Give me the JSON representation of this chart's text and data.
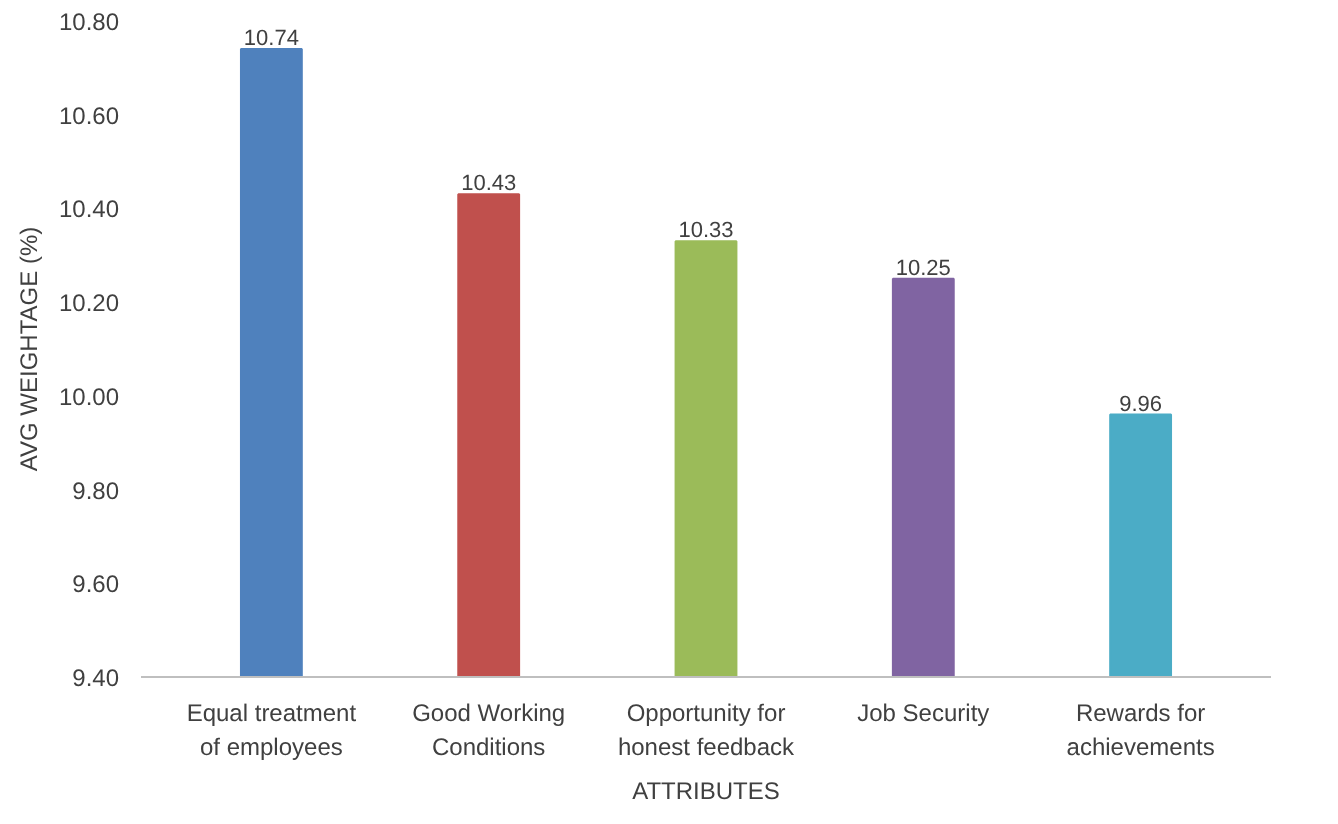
{
  "chart_data": {
    "type": "bar",
    "xlabel": "ATTRIBUTES",
    "ylabel": "AVG WEIGHTAGE (%)",
    "categories": [
      "Equal treatment\nof employees",
      "Good Working\nConditions",
      "Opportunity for\nhonest feedback",
      "Job Security",
      "Rewards for\nachievements"
    ],
    "values": [
      10.74,
      10.43,
      10.33,
      10.25,
      9.96
    ],
    "colors": [
      "#4f81bd",
      "#c0504d",
      "#9bbb59",
      "#8064a2",
      "#4bacc6"
    ],
    "ylim": [
      9.4,
      10.8
    ],
    "yticks": [
      {
        "value": 9.4,
        "label": "9.40"
      },
      {
        "value": 9.6,
        "label": "9.60"
      },
      {
        "value": 9.8,
        "label": "9.80"
      },
      {
        "value": 10.0,
        "label": "10.00"
      },
      {
        "value": 10.2,
        "label": "10.20"
      },
      {
        "value": 10.4,
        "label": "10.40"
      },
      {
        "value": 10.6,
        "label": "10.60"
      },
      {
        "value": 10.8,
        "label": "10.80"
      }
    ],
    "data_labels": true,
    "grid": false
  }
}
